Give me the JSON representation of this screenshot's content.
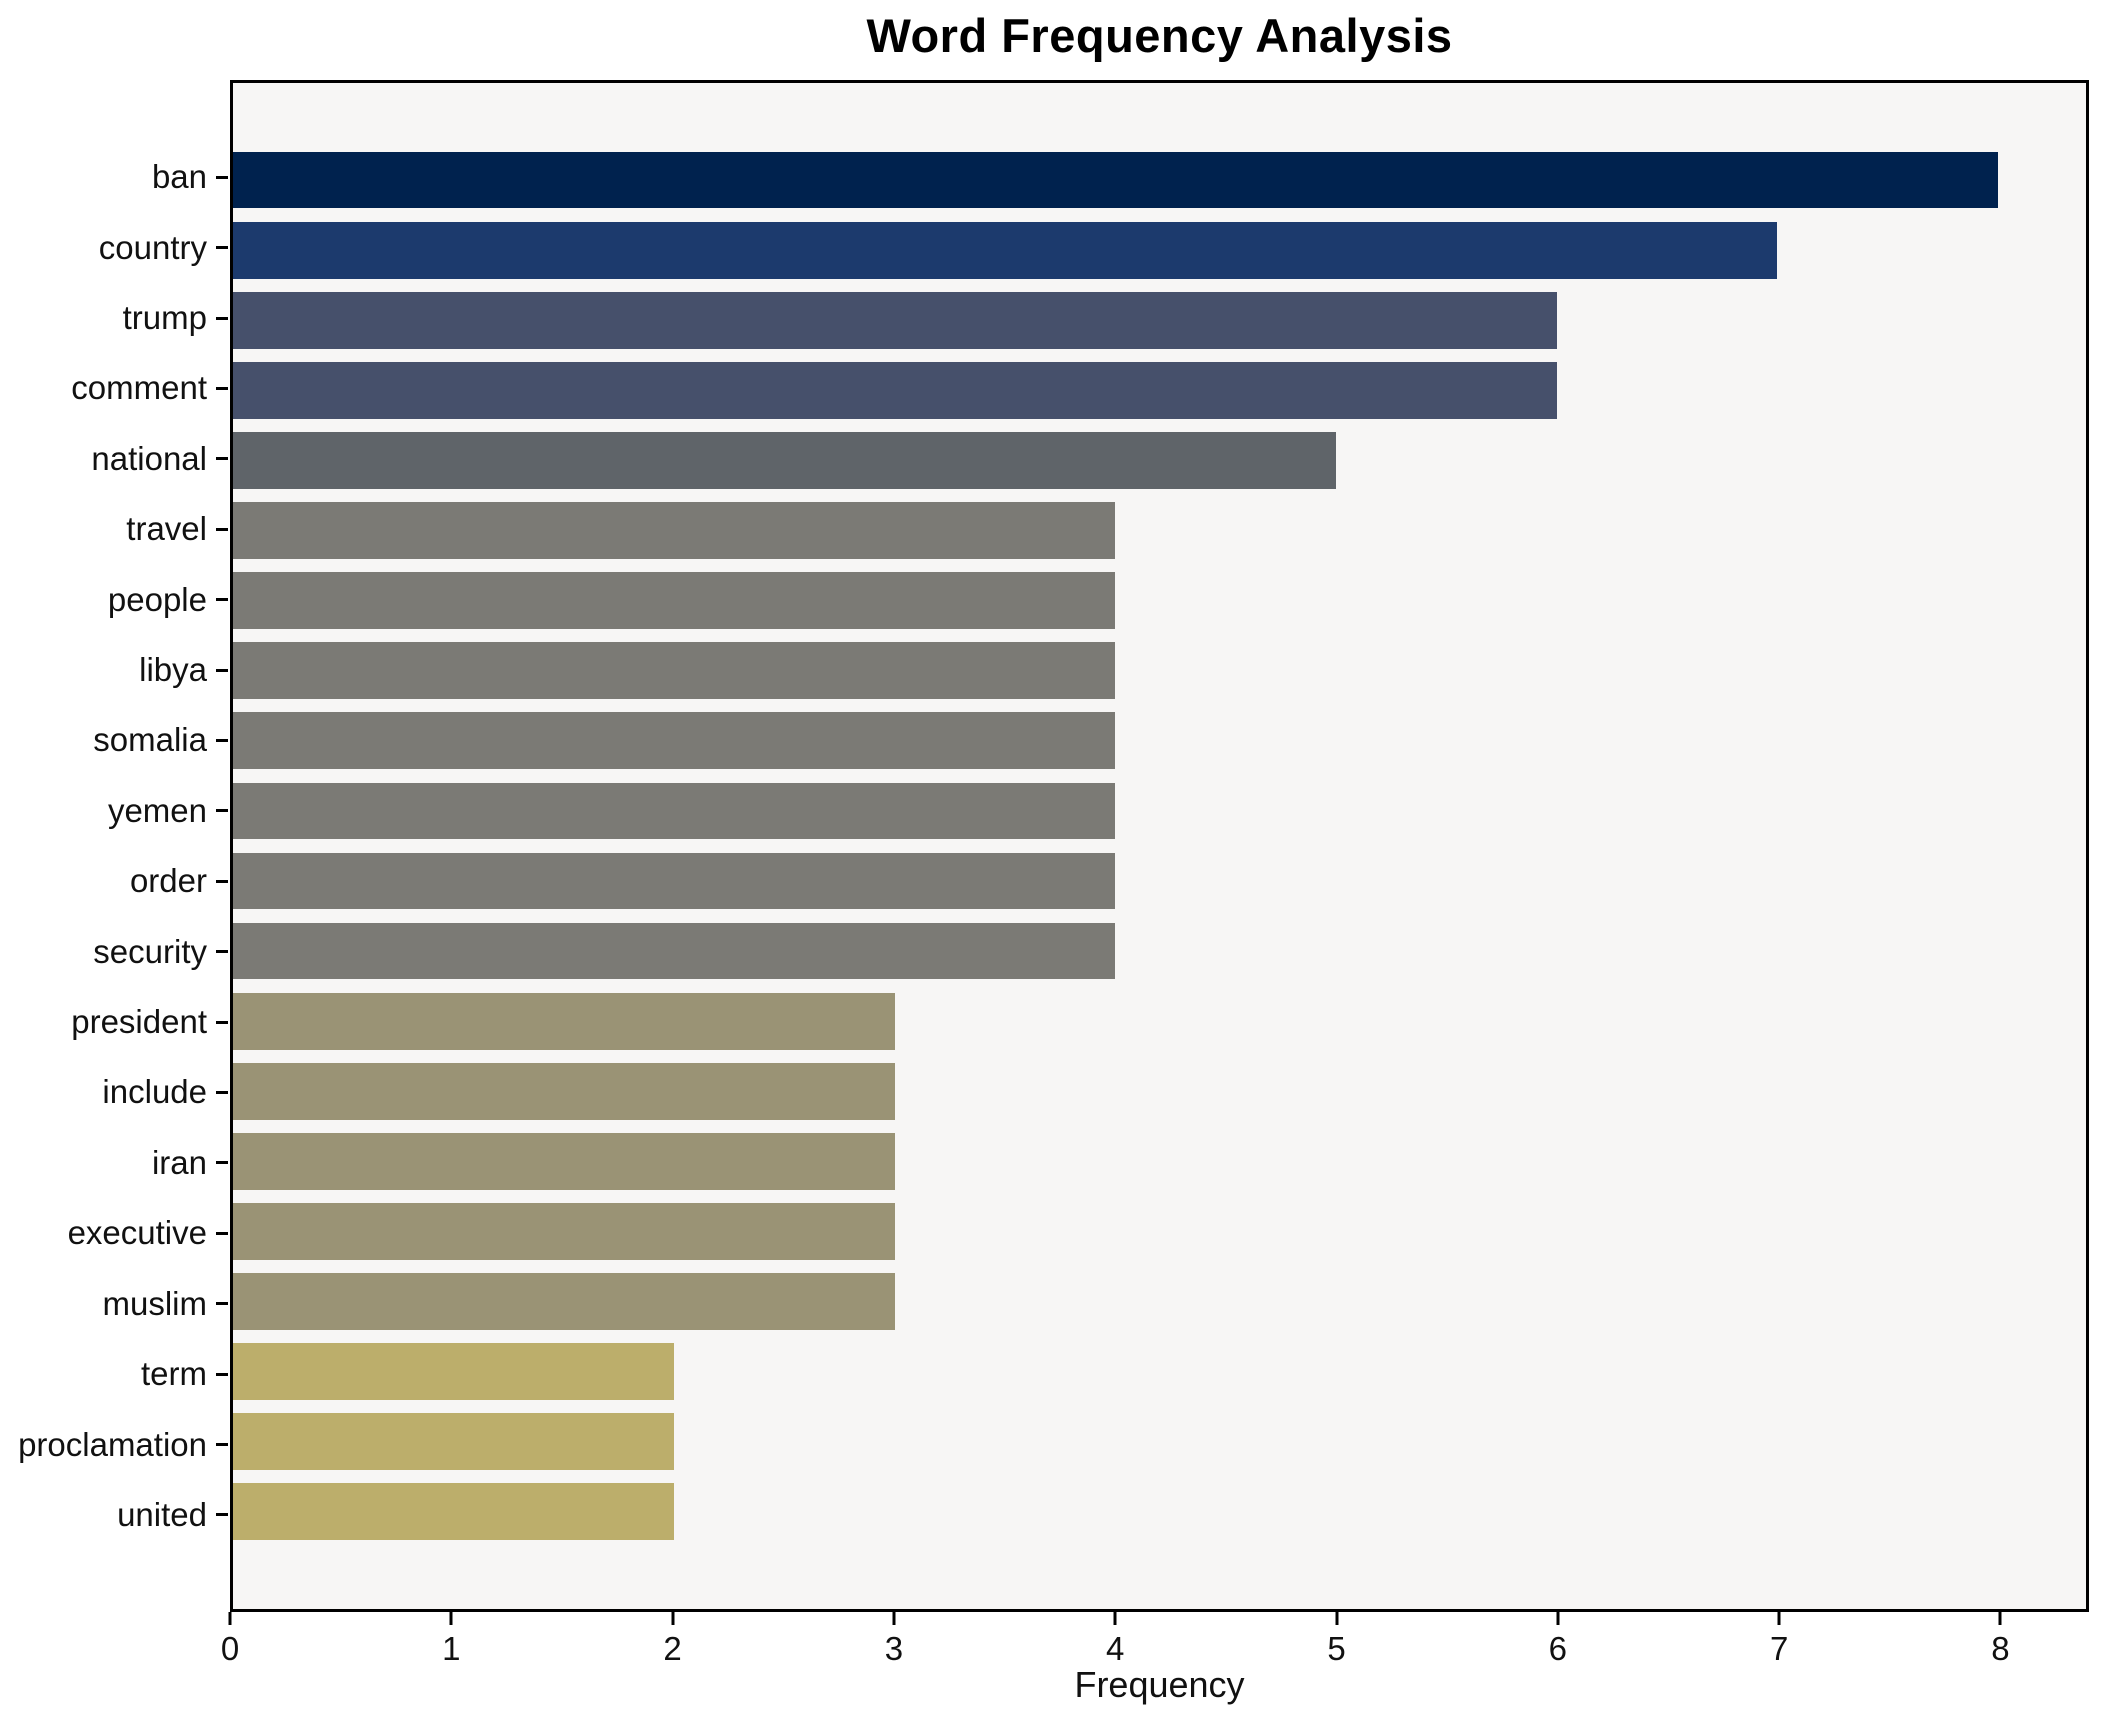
{
  "title": "Word Frequency Analysis",
  "chart_data": {
    "type": "bar",
    "orientation": "horizontal",
    "title": "Word Frequency Analysis",
    "xlabel": "Frequency",
    "ylabel": "",
    "categories": [
      "ban",
      "country",
      "trump",
      "comment",
      "national",
      "travel",
      "people",
      "libya",
      "somalia",
      "yemen",
      "order",
      "security",
      "president",
      "include",
      "iran",
      "executive",
      "muslim",
      "term",
      "proclamation",
      "united"
    ],
    "values": [
      8,
      7,
      6,
      6,
      5,
      4,
      4,
      4,
      4,
      4,
      4,
      4,
      3,
      3,
      3,
      3,
      3,
      2,
      2,
      2
    ],
    "bar_colors": [
      "#00224e",
      "#1c3a6d",
      "#46506b",
      "#46506b",
      "#5f6469",
      "#7b7a75",
      "#7b7a75",
      "#7b7a75",
      "#7b7a75",
      "#7b7a75",
      "#7b7a75",
      "#7b7a75",
      "#9a9375",
      "#9a9375",
      "#9a9375",
      "#9a9375",
      "#9a9375",
      "#bcae6b",
      "#bcae6b",
      "#bcae6b"
    ],
    "value_color_map": {
      "8": "#00224e",
      "7": "#1c3a6d",
      "6": "#46506b",
      "5": "#5f6469",
      "4": "#7b7a75",
      "3": "#9a9375",
      "2": "#bcae6b"
    },
    "xlim": [
      0,
      8.4
    ],
    "xticks": [
      0,
      1,
      2,
      3,
      4,
      5,
      6,
      7,
      8
    ],
    "grid": false,
    "legend": false,
    "plot_background": "#f7f6f5",
    "figure_background": "#ffffff",
    "spine_color": "#000000"
  }
}
